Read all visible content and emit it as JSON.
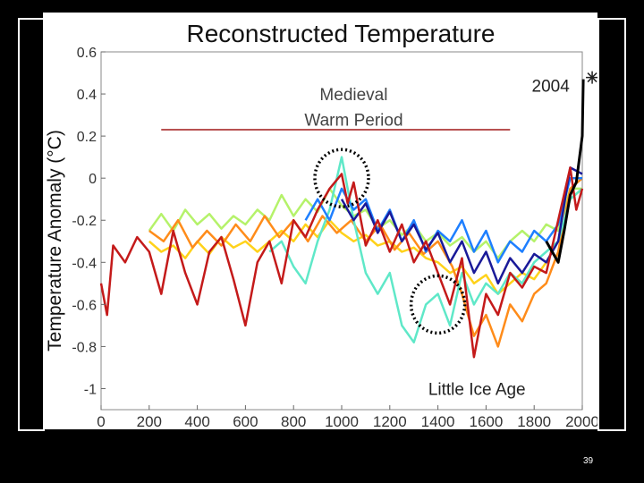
{
  "slide": {
    "page_number": "39"
  },
  "chart_data": {
    "type": "line",
    "title": "Reconstructed Temperature",
    "xlabel": "",
    "ylabel": "Temperature Anomaly (°C)",
    "xlim": [
      0,
      2000
    ],
    "ylim": [
      -1.1,
      0.6
    ],
    "x_ticks": [
      "0",
      "200",
      "400",
      "600",
      "800",
      "1000",
      "1200",
      "1400",
      "1600",
      "1800",
      "2000"
    ],
    "y_ticks": [
      "0.6",
      "0.4",
      "0.2",
      "0",
      "-0.2",
      "-0.4",
      "-0.6",
      "-0.8",
      "-1"
    ],
    "grid": false,
    "annotations": {
      "medieval_line1": "Medieval",
      "medieval_line2": "Warm Period",
      "little_ice_age": "Little Ice Age",
      "marker_label": "2004",
      "marker_year": 2004,
      "marker_value": 0.47,
      "medieval_bar_range": [
        250,
        1700
      ],
      "medieval_bar_value": 0.23
    },
    "series": [
      {
        "color": "#b5f26a",
        "points": [
          [
            200,
            -0.25
          ],
          [
            250,
            -0.17
          ],
          [
            300,
            -0.25
          ],
          [
            350,
            -0.15
          ],
          [
            400,
            -0.22
          ],
          [
            450,
            -0.17
          ],
          [
            500,
            -0.24
          ],
          [
            550,
            -0.18
          ],
          [
            600,
            -0.22
          ],
          [
            650,
            -0.15
          ],
          [
            700,
            -0.2
          ],
          [
            750,
            -0.08
          ],
          [
            800,
            -0.18
          ],
          [
            850,
            -0.1
          ],
          [
            900,
            -0.16
          ],
          [
            950,
            -0.05
          ],
          [
            1000,
            -0.13
          ],
          [
            1050,
            -0.18
          ],
          [
            1100,
            -0.15
          ],
          [
            1150,
            -0.24
          ],
          [
            1200,
            -0.2
          ],
          [
            1250,
            -0.27
          ],
          [
            1300,
            -0.22
          ],
          [
            1350,
            -0.3
          ],
          [
            1400,
            -0.26
          ],
          [
            1450,
            -0.32
          ],
          [
            1500,
            -0.28
          ],
          [
            1550,
            -0.35
          ],
          [
            1600,
            -0.3
          ],
          [
            1650,
            -0.38
          ],
          [
            1700,
            -0.3
          ],
          [
            1750,
            -0.25
          ],
          [
            1800,
            -0.3
          ],
          [
            1850,
            -0.22
          ],
          [
            1900,
            -0.25
          ],
          [
            1950,
            -0.05
          ],
          [
            2000,
            -0.05
          ]
        ]
      },
      {
        "color": "#ffd21a",
        "points": [
          [
            200,
            -0.3
          ],
          [
            250,
            -0.35
          ],
          [
            300,
            -0.32
          ],
          [
            350,
            -0.38
          ],
          [
            400,
            -0.3
          ],
          [
            450,
            -0.36
          ],
          [
            500,
            -0.28
          ],
          [
            550,
            -0.33
          ],
          [
            600,
            -0.3
          ],
          [
            650,
            -0.35
          ],
          [
            700,
            -0.3
          ],
          [
            750,
            -0.25
          ],
          [
            800,
            -0.3
          ],
          [
            850,
            -0.22
          ],
          [
            900,
            -0.28
          ],
          [
            950,
            -0.2
          ],
          [
            1000,
            -0.26
          ],
          [
            1050,
            -0.3
          ],
          [
            1100,
            -0.27
          ],
          [
            1150,
            -0.32
          ],
          [
            1200,
            -0.3
          ],
          [
            1250,
            -0.35
          ],
          [
            1300,
            -0.33
          ],
          [
            1350,
            -0.38
          ],
          [
            1400,
            -0.4
          ],
          [
            1450,
            -0.45
          ],
          [
            1500,
            -0.42
          ],
          [
            1550,
            -0.5
          ],
          [
            1600,
            -0.46
          ],
          [
            1650,
            -0.55
          ],
          [
            1700,
            -0.5
          ],
          [
            1750,
            -0.45
          ],
          [
            1800,
            -0.48
          ],
          [
            1850,
            -0.4
          ],
          [
            1900,
            -0.3
          ],
          [
            1950,
            -0.1
          ],
          [
            2000,
            -0.05
          ]
        ]
      },
      {
        "color": "#ff8c1a",
        "points": [
          [
            200,
            -0.25
          ],
          [
            260,
            -0.3
          ],
          [
            320,
            -0.2
          ],
          [
            380,
            -0.33
          ],
          [
            440,
            -0.25
          ],
          [
            500,
            -0.32
          ],
          [
            560,
            -0.22
          ],
          [
            620,
            -0.3
          ],
          [
            680,
            -0.18
          ],
          [
            740,
            -0.28
          ],
          [
            800,
            -0.2
          ],
          [
            860,
            -0.3
          ],
          [
            920,
            -0.18
          ],
          [
            980,
            -0.26
          ],
          [
            1040,
            -0.2
          ],
          [
            1100,
            -0.3
          ],
          [
            1160,
            -0.22
          ],
          [
            1220,
            -0.34
          ],
          [
            1280,
            -0.26
          ],
          [
            1340,
            -0.36
          ],
          [
            1400,
            -0.3
          ],
          [
            1460,
            -0.42
          ],
          [
            1500,
            -0.55
          ],
          [
            1550,
            -0.75
          ],
          [
            1600,
            -0.65
          ],
          [
            1650,
            -0.8
          ],
          [
            1700,
            -0.6
          ],
          [
            1750,
            -0.68
          ],
          [
            1800,
            -0.55
          ],
          [
            1850,
            -0.5
          ],
          [
            1900,
            -0.35
          ],
          [
            1950,
            -0.05
          ],
          [
            2000,
            0.0
          ]
        ]
      },
      {
        "color": "#5fe8c8",
        "points": [
          [
            700,
            -0.35
          ],
          [
            750,
            -0.3
          ],
          [
            800,
            -0.42
          ],
          [
            850,
            -0.5
          ],
          [
            900,
            -0.3
          ],
          [
            950,
            -0.15
          ],
          [
            1000,
            0.1
          ],
          [
            1050,
            -0.2
          ],
          [
            1100,
            -0.45
          ],
          [
            1150,
            -0.55
          ],
          [
            1200,
            -0.45
          ],
          [
            1250,
            -0.7
          ],
          [
            1300,
            -0.78
          ],
          [
            1350,
            -0.6
          ],
          [
            1400,
            -0.55
          ],
          [
            1450,
            -0.7
          ],
          [
            1500,
            -0.45
          ],
          [
            1550,
            -0.6
          ],
          [
            1600,
            -0.5
          ],
          [
            1650,
            -0.55
          ],
          [
            1700,
            -0.45
          ],
          [
            1750,
            -0.5
          ],
          [
            1800,
            -0.4
          ],
          [
            1850,
            -0.35
          ],
          [
            1900,
            -0.3
          ],
          [
            1950,
            -0.1
          ],
          [
            2000,
            -0.05
          ]
        ]
      },
      {
        "color": "#1e7fff",
        "points": [
          [
            850,
            -0.2
          ],
          [
            900,
            -0.1
          ],
          [
            950,
            -0.2
          ],
          [
            1000,
            -0.05
          ],
          [
            1050,
            -0.15
          ],
          [
            1100,
            -0.1
          ],
          [
            1150,
            -0.25
          ],
          [
            1200,
            -0.15
          ],
          [
            1250,
            -0.3
          ],
          [
            1300,
            -0.2
          ],
          [
            1350,
            -0.35
          ],
          [
            1400,
            -0.25
          ],
          [
            1450,
            -0.3
          ],
          [
            1500,
            -0.2
          ],
          [
            1550,
            -0.35
          ],
          [
            1600,
            -0.25
          ],
          [
            1650,
            -0.4
          ],
          [
            1700,
            -0.3
          ],
          [
            1750,
            -0.35
          ],
          [
            1800,
            -0.25
          ],
          [
            1850,
            -0.3
          ],
          [
            1900,
            -0.22
          ],
          [
            1950,
            0.0
          ],
          [
            2000,
            0.0
          ]
        ]
      },
      {
        "color": "#1a1a99",
        "points": [
          [
            1000,
            -0.1
          ],
          [
            1050,
            -0.2
          ],
          [
            1100,
            -0.12
          ],
          [
            1150,
            -0.26
          ],
          [
            1200,
            -0.16
          ],
          [
            1250,
            -0.3
          ],
          [
            1300,
            -0.22
          ],
          [
            1350,
            -0.34
          ],
          [
            1400,
            -0.26
          ],
          [
            1450,
            -0.4
          ],
          [
            1500,
            -0.3
          ],
          [
            1550,
            -0.45
          ],
          [
            1600,
            -0.35
          ],
          [
            1650,
            -0.5
          ],
          [
            1700,
            -0.38
          ],
          [
            1750,
            -0.45
          ],
          [
            1800,
            -0.36
          ],
          [
            1850,
            -0.4
          ],
          [
            1900,
            -0.3
          ],
          [
            1950,
            0.05
          ],
          [
            2000,
            0.02
          ]
        ]
      },
      {
        "color": "#c41a1a",
        "points": [
          [
            0,
            -0.5
          ],
          [
            25,
            -0.65
          ],
          [
            50,
            -0.32
          ],
          [
            100,
            -0.4
          ],
          [
            150,
            -0.28
          ],
          [
            200,
            -0.35
          ],
          [
            250,
            -0.55
          ],
          [
            300,
            -0.25
          ],
          [
            350,
            -0.45
          ],
          [
            400,
            -0.6
          ],
          [
            450,
            -0.35
          ],
          [
            500,
            -0.28
          ],
          [
            550,
            -0.48
          ],
          [
            600,
            -0.7
          ],
          [
            650,
            -0.4
          ],
          [
            700,
            -0.3
          ],
          [
            750,
            -0.5
          ],
          [
            800,
            -0.2
          ],
          [
            850,
            -0.28
          ],
          [
            900,
            -0.15
          ],
          [
            950,
            -0.05
          ],
          [
            1000,
            0.02
          ],
          [
            1025,
            -0.12
          ],
          [
            1050,
            -0.02
          ],
          [
            1100,
            -0.32
          ],
          [
            1150,
            -0.2
          ],
          [
            1200,
            -0.35
          ],
          [
            1250,
            -0.22
          ],
          [
            1300,
            -0.4
          ],
          [
            1350,
            -0.3
          ],
          [
            1400,
            -0.45
          ],
          [
            1450,
            -0.6
          ],
          [
            1500,
            -0.38
          ],
          [
            1550,
            -0.85
          ],
          [
            1600,
            -0.55
          ],
          [
            1650,
            -0.65
          ],
          [
            1700,
            -0.45
          ],
          [
            1750,
            -0.52
          ],
          [
            1800,
            -0.42
          ],
          [
            1850,
            -0.45
          ],
          [
            1900,
            -0.2
          ],
          [
            1950,
            0.05
          ],
          [
            1975,
            -0.15
          ],
          [
            2000,
            -0.05
          ]
        ]
      },
      {
        "color": "#000000",
        "points": [
          [
            1850,
            -0.3
          ],
          [
            1900,
            -0.4
          ],
          [
            1925,
            -0.25
          ],
          [
            1950,
            -0.08
          ],
          [
            1975,
            -0.02
          ],
          [
            2000,
            0.2
          ],
          [
            2004,
            0.47
          ]
        ]
      }
    ]
  }
}
